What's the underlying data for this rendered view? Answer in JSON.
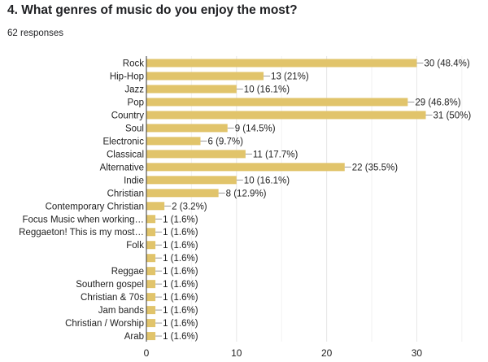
{
  "question": {
    "title": "4. What genres of music do you enjoy the most?",
    "responses_label": "62 responses"
  },
  "colors": {
    "bar": "#e1c46b",
    "grid": "#e6e6e6",
    "axis": "#333333",
    "text": "#222222",
    "leader": "#999999"
  },
  "chart_data": {
    "type": "bar",
    "orientation": "horizontal",
    "title": "",
    "xlabel": "",
    "ylabel": "",
    "xlim": [
      0,
      37
    ],
    "xticks": [
      0,
      10,
      20,
      30
    ],
    "grid": true,
    "categories": [
      "Rock",
      "Hip-Hop",
      "Jazz",
      "Pop",
      "Country",
      "Soul",
      "Electronic",
      "Classical",
      "Alternative",
      "Indie",
      "Christian",
      "Contemporary Christian",
      "Focus Music when working…",
      "Reggaeton! This is my most…",
      "Folk",
      "",
      "Reggae",
      "Southern gospel",
      "Christian & 70s",
      "Jam bands",
      "Christian / Worship",
      "Arab"
    ],
    "values": [
      30,
      13,
      10,
      29,
      31,
      9,
      6,
      11,
      22,
      10,
      8,
      2,
      1,
      1,
      1,
      1,
      1,
      1,
      1,
      1,
      1,
      1
    ],
    "data_labels": [
      "30 (48.4%)",
      "13 (21%)",
      "10 (16.1%)",
      "29 (46.8%)",
      "31 (50%)",
      "9 (14.5%)",
      "6 (9.7%)",
      "11 (17.7%)",
      "22 (35.5%)",
      "10 (16.1%)",
      "8 (12.9%)",
      "2 (3.2%)",
      "1 (1.6%)",
      "1 (1.6%)",
      "1 (1.6%)",
      "1 (1.6%)",
      "1 (1.6%)",
      "1 (1.6%)",
      "1 (1.6%)",
      "1 (1.6%)",
      "1 (1.6%)",
      "1 (1.6%)"
    ]
  }
}
